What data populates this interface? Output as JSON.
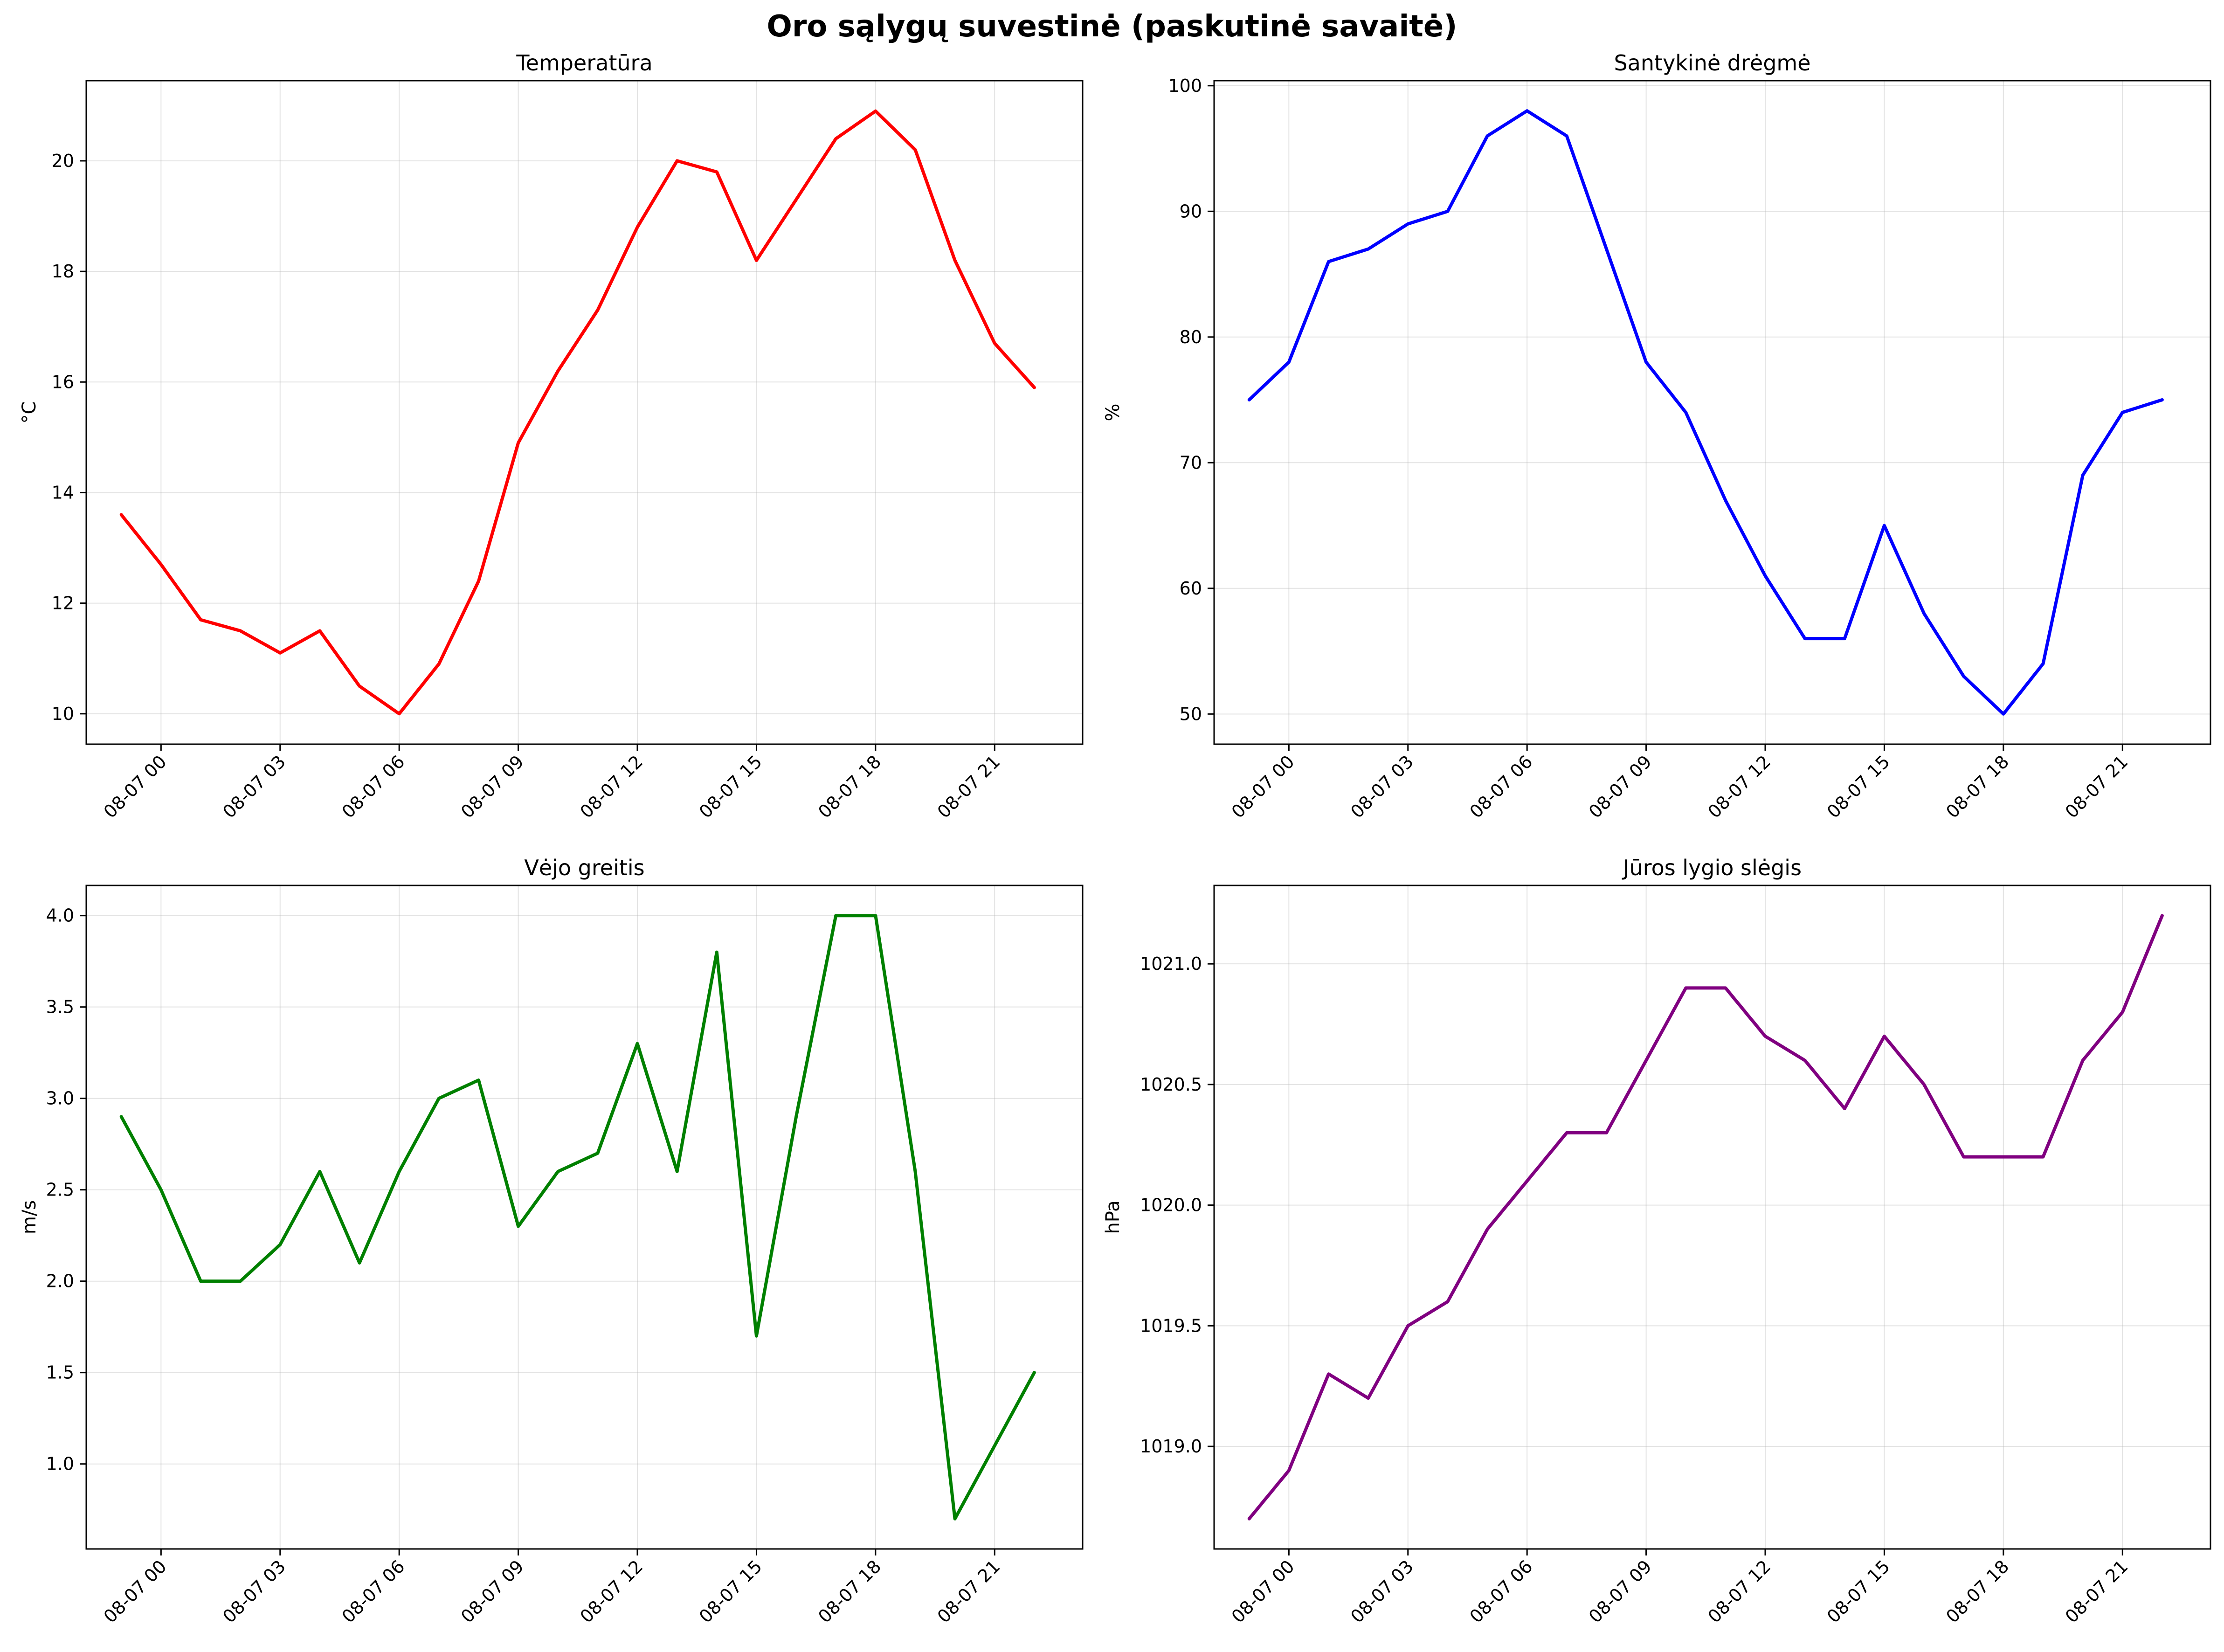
{
  "figure": {
    "title": "Oro sąlygų suvestinė (paskutinė savaitė)"
  },
  "chart_data": [
    {
      "type": "line",
      "title": "Temperatūra",
      "ylabel": "°C",
      "xlabel": "",
      "color": "#ff0000",
      "x": [
        "08-06 23",
        "08-07 00",
        "08-07 01",
        "08-07 02",
        "08-07 03",
        "08-07 04",
        "08-07 05",
        "08-07 06",
        "08-07 07",
        "08-07 08",
        "08-07 09",
        "08-07 10",
        "08-07 11",
        "08-07 12",
        "08-07 13",
        "08-07 14",
        "08-07 15",
        "08-07 16",
        "08-07 17",
        "08-07 18",
        "08-07 19",
        "08-07 20",
        "08-07 21",
        "08-07 22"
      ],
      "values": [
        13.6,
        12.7,
        11.7,
        11.5,
        11.1,
        11.5,
        10.5,
        10.0,
        10.9,
        12.4,
        14.9,
        16.2,
        17.3,
        18.8,
        20.0,
        19.8,
        18.2,
        19.3,
        20.4,
        20.9,
        20.2,
        18.2,
        16.7,
        15.9
      ],
      "xlim": [
        "08-06 22:07",
        "08-07 23:13"
      ],
      "ylim": [
        9.45,
        21.45
      ],
      "xticks": [
        "08-07 00",
        "08-07 03",
        "08-07 06",
        "08-07 09",
        "08-07 12",
        "08-07 15",
        "08-07 18",
        "08-07 21"
      ],
      "yticks": [
        "10",
        "12",
        "14",
        "16",
        "18",
        "20"
      ],
      "grid": true
    },
    {
      "type": "line",
      "title": "Santykinė drėgmė",
      "ylabel": "%",
      "xlabel": "",
      "color": "#0000ff",
      "x": [
        "08-06 23",
        "08-07 00",
        "08-07 01",
        "08-07 02",
        "08-07 03",
        "08-07 04",
        "08-07 05",
        "08-07 06",
        "08-07 07",
        "08-07 08",
        "08-07 09",
        "08-07 10",
        "08-07 11",
        "08-07 12",
        "08-07 13",
        "08-07 14",
        "08-07 15",
        "08-07 16",
        "08-07 17",
        "08-07 18",
        "08-07 19",
        "08-07 20",
        "08-07 21",
        "08-07 22"
      ],
      "values": [
        75,
        78,
        86,
        87,
        89,
        90,
        96,
        98,
        96,
        87,
        78,
        74,
        67,
        61,
        56,
        56,
        65,
        58,
        53,
        50,
        54,
        69,
        74,
        75
      ],
      "xlim": [
        "08-06 22:07",
        "08-07 23:13"
      ],
      "ylim": [
        47.6,
        100.4
      ],
      "xticks": [
        "08-07 00",
        "08-07 03",
        "08-07 06",
        "08-07 09",
        "08-07 12",
        "08-07 15",
        "08-07 18",
        "08-07 21"
      ],
      "yticks": [
        "50",
        "60",
        "70",
        "80",
        "90",
        "100"
      ],
      "grid": true
    },
    {
      "type": "line",
      "title": "Vėjo greitis",
      "ylabel": "m/s",
      "xlabel": "",
      "color": "#008000",
      "x": [
        "08-06 23",
        "08-07 00",
        "08-07 01",
        "08-07 02",
        "08-07 03",
        "08-07 04",
        "08-07 05",
        "08-07 06",
        "08-07 07",
        "08-07 08",
        "08-07 09",
        "08-07 10",
        "08-07 11",
        "08-07 12",
        "08-07 13",
        "08-07 14",
        "08-07 15",
        "08-07 16",
        "08-07 17",
        "08-07 18",
        "08-07 19",
        "08-07 20",
        "08-07 21",
        "08-07 22"
      ],
      "values": [
        2.9,
        2.5,
        2.0,
        2.0,
        2.2,
        2.6,
        2.1,
        2.6,
        3.0,
        3.1,
        2.3,
        2.6,
        2.7,
        3.3,
        2.6,
        3.8,
        1.7,
        2.9,
        4.0,
        4.0,
        2.6,
        0.7,
        1.1,
        1.5
      ],
      "xlim": [
        "08-06 22:07",
        "08-07 23:13"
      ],
      "ylim": [
        0.535,
        4.165
      ],
      "xticks": [
        "08-07 00",
        "08-07 03",
        "08-07 06",
        "08-07 09",
        "08-07 12",
        "08-07 15",
        "08-07 18",
        "08-07 21"
      ],
      "yticks": [
        "1.0",
        "1.5",
        "2.0",
        "2.5",
        "3.0",
        "3.5",
        "4.0"
      ],
      "grid": true
    },
    {
      "type": "line",
      "title": "Jūros lygio slėgis",
      "ylabel": "hPa",
      "xlabel": "",
      "color": "#800080",
      "x": [
        "08-06 23",
        "08-07 00",
        "08-07 01",
        "08-07 02",
        "08-07 03",
        "08-07 04",
        "08-07 05",
        "08-07 06",
        "08-07 07",
        "08-07 08",
        "08-07 09",
        "08-07 10",
        "08-07 11",
        "08-07 12",
        "08-07 13",
        "08-07 14",
        "08-07 15",
        "08-07 16",
        "08-07 17",
        "08-07 18",
        "08-07 19",
        "08-07 20",
        "08-07 21",
        "08-07 22"
      ],
      "values": [
        1018.7,
        1018.9,
        1019.3,
        1019.2,
        1019.5,
        1019.6,
        1019.9,
        1020.1,
        1020.3,
        1020.3,
        1020.6,
        1020.9,
        1020.9,
        1020.7,
        1020.6,
        1020.4,
        1020.7,
        1020.5,
        1020.2,
        1020.2,
        1020.2,
        1020.6,
        1020.8,
        1021.2
      ],
      "xlim": [
        "08-06 22:07",
        "08-07 23:13"
      ],
      "ylim": [
        1018.575,
        1021.325
      ],
      "xticks": [
        "08-07 00",
        "08-07 03",
        "08-07 06",
        "08-07 09",
        "08-07 12",
        "08-07 15",
        "08-07 18",
        "08-07 21"
      ],
      "yticks": [
        "1019.0",
        "1019.5",
        "1020.0",
        "1020.5",
        "1021.0"
      ],
      "grid": true
    }
  ]
}
